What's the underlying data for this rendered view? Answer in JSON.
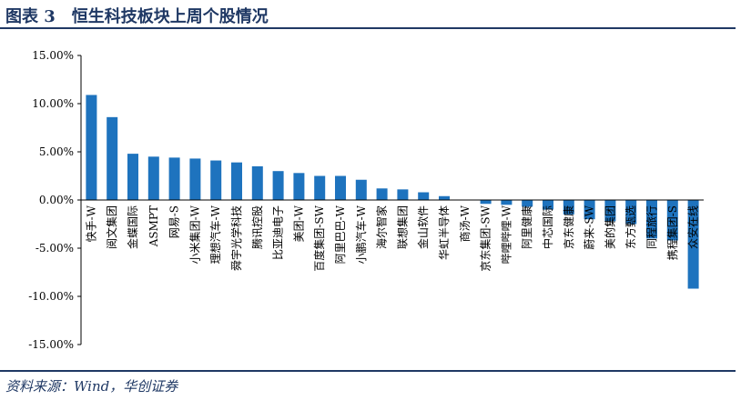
{
  "header": {
    "title": "图表 3　恒生科技板块上周个股情况"
  },
  "footer": {
    "source": "资料来源：Wind，华创证券"
  },
  "colors": {
    "bar": "#1e73be",
    "title": "#1f3864",
    "axis": "#000000"
  },
  "chart_data": {
    "type": "bar",
    "title": "",
    "xlabel": "",
    "ylabel": "",
    "ylim": [
      -15,
      15
    ],
    "yticks": [
      "15.00%",
      "10.00%",
      "5.00%",
      "0.00%",
      "-5.00%",
      "-10.00%",
      "-15.00%"
    ],
    "grid": false,
    "categories": [
      "快手-W",
      "阅文集团",
      "金蝶国际",
      "ASMPT",
      "网易-S",
      "小米集团-W",
      "理想汽车-W",
      "舜宇光学科技",
      "腾讯控股",
      "比亚迪电子",
      "美团-W",
      "百度集团-SW",
      "阿里巴巴-W",
      "小鹏汽车-W",
      "海尔智家",
      "联想集团",
      "金山软件",
      "华虹半导体",
      "商汤-W",
      "京东集团-SW",
      "哔哩哔哩-W",
      "阿里健康",
      "中芯国际",
      "京东健康",
      "蔚来-SW",
      "美的集团",
      "东方甄选",
      "同程旅行",
      "携程集团-S",
      "众安在线"
    ],
    "values": [
      10.9,
      8.6,
      4.8,
      4.5,
      4.4,
      4.3,
      4.1,
      3.9,
      3.5,
      3.0,
      2.8,
      2.5,
      2.5,
      2.1,
      1.2,
      1.1,
      0.8,
      0.4,
      0.0,
      -0.4,
      -0.5,
      -0.7,
      -1.0,
      -1.5,
      -2.0,
      -2.2,
      -2.5,
      -4.0,
      -4.2,
      -9.2
    ]
  }
}
